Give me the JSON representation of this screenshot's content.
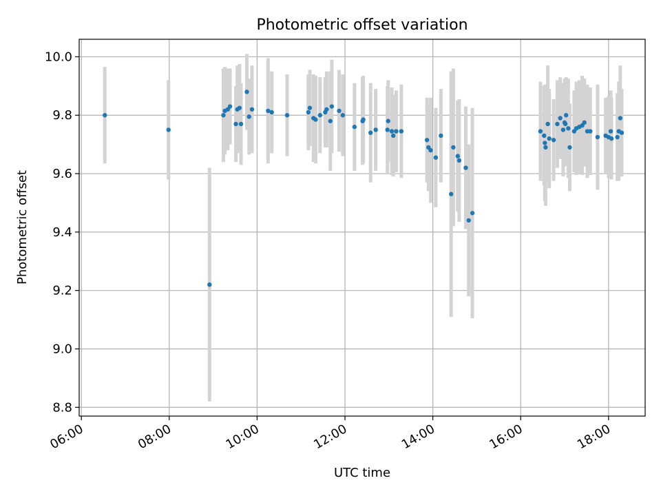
{
  "chart_data": {
    "type": "scatter",
    "title": "Photometric offset variation",
    "xlabel": "UTC time",
    "ylabel": "Photometric offset",
    "xlim": [
      "05:57",
      "18:50"
    ],
    "ylim": [
      8.77,
      10.06
    ],
    "x_ticks": [
      "06:00",
      "08:00",
      "10:00",
      "12:00",
      "14:00",
      "16:00",
      "18:00"
    ],
    "y_ticks": [
      "8.8",
      "9.0",
      "9.2",
      "9.4",
      "9.6",
      "9.8",
      "10.0"
    ],
    "grid": true,
    "colors": {
      "points": "#1f77b4",
      "errorbars": "#d3d3d3",
      "grid": "#b0b0b0"
    },
    "series": [
      {
        "x": [
          "06:32",
          "07:59",
          "08:55",
          "09:14",
          "09:16",
          "09:20",
          "09:23",
          "09:31",
          "09:33",
          "09:36",
          "09:38",
          "09:46",
          "09:49",
          "09:53",
          "10:15",
          "10:20",
          "10:41",
          "11:10",
          "11:12",
          "11:17",
          "11:20",
          "11:26",
          "11:33",
          "11:35",
          "11:40",
          "11:42",
          "11:52",
          "11:57",
          "12:13",
          "12:24",
          "12:25",
          "12:35",
          "12:42",
          "12:58",
          "12:59",
          "13:04",
          "13:06",
          "13:10",
          "13:17",
          "13:52",
          "13:54",
          "13:57",
          "14:04",
          "14:11",
          "14:25",
          "14:28",
          "14:34",
          "14:36",
          "14:45",
          "14:49",
          "14:54",
          "16:27",
          "16:32",
          "16:33",
          "16:34",
          "16:37",
          "16:39",
          "16:45",
          "16:50",
          "16:54",
          "16:58",
          "17:00",
          "17:01",
          "17:02",
          "17:05",
          "17:07",
          "17:13",
          "17:16",
          "17:20",
          "17:24",
          "17:27",
          "17:31",
          "17:35",
          "17:45",
          "17:56",
          "18:00",
          "18:03",
          "18:04",
          "18:12",
          "18:14",
          "18:16",
          "18:18"
        ],
        "y": [
          9.8,
          9.75,
          9.22,
          9.8,
          9.815,
          9.82,
          9.83,
          9.77,
          9.82,
          9.825,
          9.77,
          9.88,
          9.795,
          9.82,
          9.815,
          9.81,
          9.8,
          9.81,
          9.825,
          9.79,
          9.785,
          9.8,
          9.81,
          9.82,
          9.78,
          9.83,
          9.815,
          9.8,
          9.76,
          9.78,
          9.785,
          9.74,
          9.75,
          9.75,
          9.78,
          9.745,
          9.73,
          9.745,
          9.745,
          9.715,
          9.69,
          9.68,
          9.655,
          9.73,
          9.53,
          9.69,
          9.66,
          9.645,
          9.62,
          9.44,
          9.465,
          9.745,
          9.73,
          9.705,
          9.69,
          9.77,
          9.72,
          9.715,
          9.77,
          9.79,
          9.75,
          9.775,
          9.77,
          9.8,
          9.755,
          9.69,
          9.745,
          9.755,
          9.76,
          9.765,
          9.775,
          9.745,
          9.745,
          9.725,
          9.73,
          9.725,
          9.745,
          9.72,
          9.725,
          9.745,
          9.79,
          9.74
        ],
        "err": [
          0.165,
          0.17,
          0.4,
          0.16,
          0.15,
          0.14,
          0.13,
          0.13,
          0.15,
          0.15,
          0.14,
          0.13,
          0.13,
          0.15,
          0.18,
          0.14,
          0.14,
          0.13,
          0.13,
          0.15,
          0.15,
          0.13,
          0.12,
          0.13,
          0.17,
          0.16,
          0.14,
          0.14,
          0.15,
          0.15,
          0.15,
          0.17,
          0.14,
          0.15,
          0.14,
          0.15,
          0.14,
          0.14,
          0.16,
          0.145,
          0.15,
          0.18,
          0.17,
          0.16,
          0.42,
          0.27,
          0.19,
          0.21,
          0.21,
          0.26,
          0.36,
          0.17,
          0.17,
          0.2,
          0.2,
          0.2,
          0.17,
          0.14,
          0.15,
          0.14,
          0.16,
          0.15,
          0.14,
          0.13,
          0.17,
          0.15,
          0.14,
          0.16,
          0.16,
          0.17,
          0.15,
          0.16,
          0.15,
          0.18,
          0.13,
          0.14,
          0.14,
          0.14,
          0.15,
          0.17,
          0.18,
          0.15
        ]
      }
    ]
  }
}
